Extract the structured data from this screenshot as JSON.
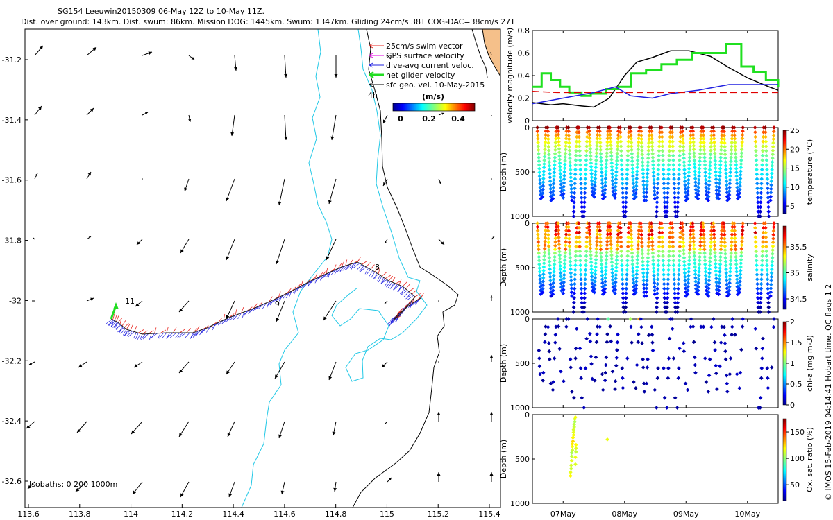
{
  "title": {
    "line1": "SG154 Leeuwin20150309 06-May 12Z to 10-May 11Z.",
    "line2": "Dist. over ground: 143km. Dist. swum: 86km. Mission DOG: 1445km. Swum: 1347km. Gliding 24cm/s 38T COG-DAC=38cm/s 27T"
  },
  "colors": {
    "swim": "#e8261f",
    "gps": "#e000e0",
    "dac": "#1f1fe0",
    "net": "#22dd22",
    "geo": "#000000",
    "isobath": "#21c8e6",
    "coast": "#000000",
    "land": "#f5c08a",
    "mag_black": "#000000",
    "mag_green": "#20e020",
    "mag_blue": "#2020e0",
    "mag_red": "#e00000"
  },
  "map": {
    "legend": {
      "swim": "25cm/s swim vector",
      "gps": "GPS surface velocity",
      "dac": "dive-avg current veloc.",
      "net": "net glider velocity",
      "geo": "sfc geo. vel. 10-May-2015",
      "scale": "4h"
    },
    "colorbar": {
      "unit": "(m/s)",
      "ticks": [
        "0",
        "0.2",
        "0.4"
      ]
    },
    "xticks": [
      "113.6",
      "113.8",
      "114",
      "114.2",
      "114.4",
      "114.6",
      "114.8",
      "115",
      "115.2",
      "115.4"
    ],
    "yticks": [
      "-31.2",
      "-31.4",
      "-31.6",
      "-31.8",
      "-32",
      "-32.2",
      "-32.4",
      "-32.6"
    ],
    "isobaths_label": "Isobaths: 0   200  1000m",
    "track_labels": [
      "11",
      "9",
      "8"
    ]
  },
  "chart_data": [
    {
      "type": "line",
      "title": "",
      "ylabel": "velocity magnitude (m/s)",
      "ylim": [
        0,
        0.8
      ],
      "yticks": [
        "0",
        "0.2",
        "0.4",
        "0.6",
        "0.8"
      ],
      "xlim_days": [
        6.5,
        10.5
      ],
      "series": [
        {
          "name": "net glider velocity (black)",
          "x": [
            6.5,
            6.8,
            7.0,
            7.3,
            7.5,
            7.75,
            8.0,
            8.2,
            8.45,
            8.75,
            9.05,
            9.4,
            9.7,
            10.0,
            10.35,
            10.5
          ],
          "y": [
            0.16,
            0.14,
            0.15,
            0.13,
            0.12,
            0.2,
            0.4,
            0.52,
            0.56,
            0.62,
            0.62,
            0.57,
            0.47,
            0.38,
            0.3,
            0.27
          ]
        },
        {
          "name": "GPS/horizontal speed (green)",
          "x": [
            6.5,
            6.65,
            6.8,
            6.95,
            7.1,
            7.3,
            7.45,
            7.7,
            7.9,
            8.1,
            8.35,
            8.6,
            8.85,
            9.1,
            9.3,
            9.5,
            9.65,
            9.9,
            10.1,
            10.3,
            10.5
          ],
          "y": [
            0.3,
            0.42,
            0.36,
            0.3,
            0.25,
            0.22,
            0.24,
            0.28,
            0.3,
            0.42,
            0.45,
            0.5,
            0.54,
            0.6,
            0.6,
            0.6,
            0.68,
            0.48,
            0.43,
            0.36,
            0.3
          ]
        },
        {
          "name": "dive-avg current (blue)",
          "x": [
            6.5,
            7.0,
            7.5,
            7.85,
            8.1,
            8.45,
            8.75,
            9.2,
            9.7,
            10.1,
            10.5
          ],
          "y": [
            0.15,
            0.2,
            0.25,
            0.3,
            0.22,
            0.2,
            0.24,
            0.27,
            0.32,
            0.32,
            0.32
          ]
        },
        {
          "name": "swim speed (red dashed)",
          "x": [
            6.5,
            6.9,
            7.3,
            7.7,
            8.1,
            8.5,
            8.9,
            9.3,
            9.7,
            10.1,
            10.5
          ],
          "y": [
            0.26,
            0.25,
            0.25,
            0.25,
            0.25,
            0.25,
            0.25,
            0.25,
            0.25,
            0.25,
            0.25
          ]
        }
      ]
    },
    {
      "type": "scatter",
      "ylabel": "Depth (m)",
      "yticks": [
        "0",
        "500",
        "1000"
      ],
      "ylim": [
        0,
        1000
      ],
      "colorbar_label": "temperature (°C)",
      "colorbar_ticks": [
        "5",
        "10",
        "15",
        "20",
        "25"
      ],
      "clim": [
        3,
        25
      ],
      "variable": "temperature",
      "profile_max_depth_m": [
        800,
        780,
        820,
        800,
        760,
        790,
        820,
        1000,
        1000,
        1000,
        760,
        780,
        800,
        780,
        760,
        790,
        1000,
        1000,
        800,
        780,
        820,
        820,
        800,
        1000,
        1000,
        1000,
        1000,
        1000,
        820,
        800,
        780,
        800,
        800,
        820,
        790,
        800,
        820,
        800,
        800,
        780,
        800,
        800,
        1000,
        1000,
        1000,
        820
      ]
    },
    {
      "type": "scatter",
      "ylabel": "Depth (m)",
      "yticks": [
        "0",
        "500",
        "1000"
      ],
      "ylim": [
        0,
        1000
      ],
      "colorbar_label": "salinity",
      "colorbar_ticks": [
        "34.5",
        "35",
        "35.5"
      ],
      "clim": [
        34.3,
        35.9
      ],
      "variable": "salinity"
    },
    {
      "type": "scatter",
      "ylabel": "Depth (m)",
      "yticks": [
        "0",
        "500",
        "1000"
      ],
      "ylim": [
        0,
        1000
      ],
      "colorbar_label": "chl-a (mg m-3)",
      "colorbar_ticks": [
        "0",
        "0.5",
        "1",
        "1.5",
        "2"
      ],
      "clim": [
        0,
        2
      ],
      "variable": "chlorophyll-a"
    },
    {
      "type": "scatter",
      "ylabel": "Depth (m)",
      "yticks": [
        "0",
        "500",
        "1000"
      ],
      "ylim": [
        0,
        1000
      ],
      "colorbar_label": "Ox. sat. ratio (%)",
      "colorbar_ticks": [
        "50",
        "100",
        "150"
      ],
      "clim": [
        20,
        175
      ],
      "variable": "oxygen saturation",
      "x_days": [
        7.12,
        7.12,
        7.13,
        7.13,
        7.14,
        7.14,
        7.14,
        7.15,
        7.15,
        7.15,
        7.16,
        7.16,
        7.17,
        7.17,
        7.17,
        7.18,
        7.18,
        7.19,
        7.19,
        7.2,
        7.2,
        7.2,
        7.21,
        7.21,
        7.21,
        7.72
      ],
      "depth": [
        690,
        650,
        610,
        570,
        520,
        470,
        430,
        400,
        360,
        330,
        300,
        260,
        230,
        200,
        170,
        140,
        110,
        80,
        50,
        30,
        560,
        480,
        420,
        380,
        340,
        280
      ],
      "value": [
        120,
        115,
        110,
        112,
        115,
        108,
        105,
        110,
        118,
        122,
        125,
        120,
        118,
        115,
        112,
        110,
        108,
        105,
        112,
        118,
        113,
        116,
        109,
        114,
        119,
        116
      ],
      "xticks": [
        "07May",
        "08May",
        "09May",
        "10May"
      ]
    }
  ],
  "side_stamp": "© IMOS 15-Feb-2019 04:14:41 Hobart time. QC flags 1  2"
}
